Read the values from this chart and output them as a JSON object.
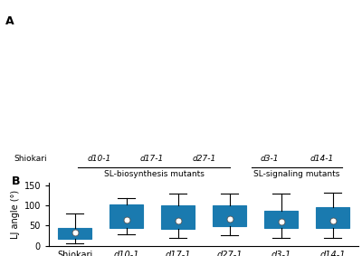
{
  "panel_b": {
    "categories": [
      "Shiokari",
      "d10-1",
      "d17-1",
      "d27-1",
      "d3-1",
      "d14-1"
    ],
    "box_data": {
      "Shiokari": {
        "whislo": 5,
        "q1": 18,
        "med": 28,
        "q3": 45,
        "whishi": 80,
        "mean": 32
      },
      "d10-1": {
        "whislo": 28,
        "q1": 43,
        "med": 65,
        "q3": 102,
        "whishi": 118,
        "mean": 65
      },
      "d17-1": {
        "whislo": 20,
        "q1": 42,
        "med": 53,
        "q3": 100,
        "whishi": 130,
        "mean": 62
      },
      "d27-1": {
        "whislo": 26,
        "q1": 48,
        "med": 65,
        "q3": 100,
        "whishi": 130,
        "mean": 66
      },
      "d3-1": {
        "whislo": 20,
        "q1": 43,
        "med": 60,
        "q3": 87,
        "whishi": 130,
        "mean": 60
      },
      "d14-1": {
        "whislo": 20,
        "q1": 43,
        "med": 57,
        "q3": 96,
        "whishi": 132,
        "mean": 61
      }
    },
    "box_color": "#29ABE2",
    "box_edge_color": "#1A7AAF",
    "median_color": "#1A7AAF",
    "mean_color": "white",
    "mean_edge_color": "#555555",
    "ylabel": "LJ angle (°)",
    "ylim": [
      0,
      155
    ],
    "yticks": [
      0,
      50,
      100,
      150
    ],
    "panel_label": "B"
  },
  "panel_a": {
    "panel_label": "A",
    "labels": [
      "Shiokari",
      "d10-1",
      "d17-1",
      "d27-1",
      "d3-1",
      "d14-1"
    ],
    "label_italic": [
      false,
      true,
      true,
      true,
      true,
      true
    ],
    "group_labels": [
      "SL-biosynthesis mutants",
      "SL-signaling mutants"
    ],
    "bg_color": "#787878"
  },
  "fig_width": 4.0,
  "fig_height": 2.83,
  "dpi": 100
}
